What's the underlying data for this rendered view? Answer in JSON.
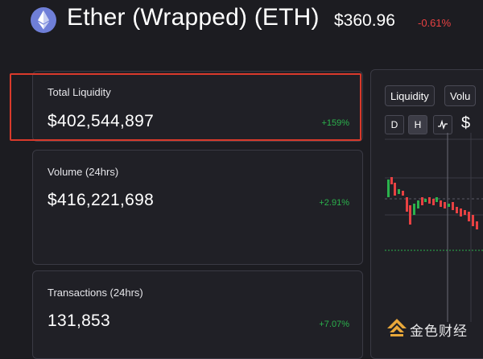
{
  "header": {
    "token_name": "Ether (Wrapped) (ETH)",
    "price": "$360.96",
    "change": "-0.61%",
    "change_color": "#e84142",
    "logo_icon": "ethereum-icon"
  },
  "stats": [
    {
      "label": "Total Liquidity",
      "value": "$402,544,897",
      "change": "+159%"
    },
    {
      "label": "Volume (24hrs)",
      "value": "$416,221,698",
      "change": "+2.91%"
    },
    {
      "label": "Transactions (24hrs)",
      "value": "131,853",
      "change": "+7.07%"
    }
  ],
  "chart_controls": {
    "metric_tabs": [
      "Liquidity",
      "Volu"
    ],
    "timeframes": [
      "D",
      "H"
    ],
    "active_timeframe": "H",
    "line_toggle_icon": "line-chart-icon",
    "currency_label": "$"
  },
  "colors": {
    "positive": "#2bb24c",
    "negative": "#e84142",
    "highlight": "#d93a2b"
  },
  "watermark": {
    "text": "金色财经",
    "icon": "jinse-logo-icon"
  }
}
